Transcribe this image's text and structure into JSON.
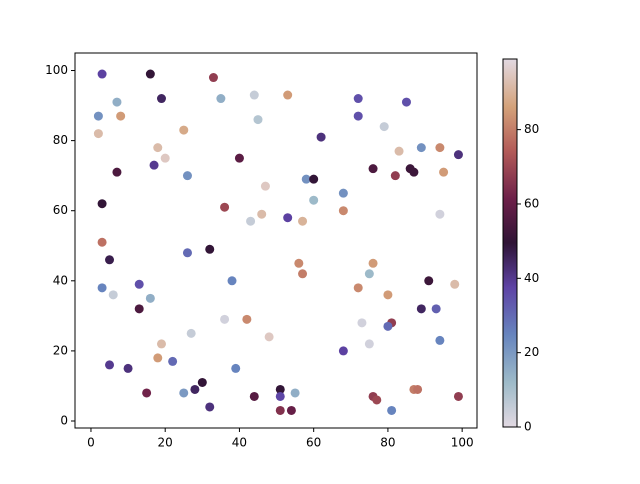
{
  "chart_data": {
    "type": "scatter",
    "x": [
      3,
      16,
      33,
      2,
      7,
      8,
      19,
      35,
      44,
      53,
      2,
      25,
      45,
      18,
      20,
      17,
      26,
      7,
      40,
      62,
      72,
      72,
      85,
      79,
      83,
      89,
      94,
      99,
      76,
      82,
      86,
      87,
      95,
      58,
      60,
      68,
      60,
      68,
      3,
      36,
      47,
      46,
      43,
      53,
      57,
      94,
      3,
      26,
      32,
      5,
      56,
      57,
      76,
      75,
      3,
      6,
      13,
      13,
      16,
      38,
      42,
      36,
      27,
      48,
      72,
      80,
      91,
      89,
      93,
      98,
      73,
      81,
      80,
      75,
      94,
      68,
      19,
      18,
      22,
      5,
      10,
      39,
      30,
      28,
      25,
      15,
      51,
      55,
      44,
      51,
      32,
      51,
      54,
      76,
      77,
      87,
      88,
      81,
      99
    ],
    "values": [
      99,
      99,
      98,
      87,
      91,
      87,
      92,
      92,
      93,
      93,
      82,
      83,
      86,
      78,
      75,
      73,
      70,
      71,
      75,
      81,
      92,
      87,
      91,
      84,
      77,
      78,
      78,
      76,
      72,
      70,
      72,
      71,
      71,
      69,
      69,
      65,
      63,
      60,
      62,
      61,
      67,
      59,
      57,
      58,
      57,
      59,
      51,
      48,
      49,
      46,
      45,
      42,
      45,
      42,
      38,
      36,
      39,
      32,
      35,
      40,
      29,
      29,
      25,
      24,
      38,
      36,
      40,
      32,
      32,
      39,
      28,
      28,
      27,
      22,
      23,
      20,
      22,
      18,
      17,
      16,
      15,
      15,
      11,
      9,
      8,
      8,
      9,
      8,
      7,
      7,
      4,
      3,
      3,
      7,
      6,
      9,
      9,
      3,
      7
    ],
    "c": [
      38,
      50,
      68,
      22,
      15,
      85,
      45,
      15,
      5,
      85,
      92,
      88,
      8,
      92,
      95,
      40,
      22,
      55,
      58,
      42,
      35,
      35,
      35,
      5,
      92,
      22,
      82,
      42,
      55,
      68,
      52,
      52,
      85,
      22,
      50,
      22,
      12,
      82,
      50,
      70,
      95,
      92,
      5,
      38,
      90,
      3,
      78,
      30,
      50,
      47,
      82,
      80,
      85,
      12,
      25,
      5,
      35,
      55,
      15,
      25,
      82,
      3,
      5,
      95,
      82,
      85,
      52,
      45,
      32,
      92,
      3,
      68,
      30,
      3,
      25,
      38,
      92,
      85,
      30,
      40,
      42,
      25,
      50,
      45,
      20,
      62,
      50,
      15,
      57,
      37,
      42,
      65,
      60,
      68,
      70,
      80,
      78,
      25,
      68
    ],
    "xlim": [
      -4.3,
      104
    ],
    "ylim": [
      -2,
      105
    ],
    "xticks": [
      0,
      20,
      40,
      60,
      80,
      100
    ],
    "yticks": [
      0,
      20,
      40,
      60,
      80,
      100
    ],
    "colorbar": {
      "clim": [
        0,
        99
      ],
      "ticks": [
        0,
        20,
        40,
        60,
        80
      ]
    },
    "colormap": [
      [
        0,
        "#e2d9e2"
      ],
      [
        0.12,
        "#9ebbc9"
      ],
      [
        0.25,
        "#6785be"
      ],
      [
        0.38,
        "#5e43a5"
      ],
      [
        0.5,
        "#2f1436"
      ],
      [
        0.62,
        "#6d2049"
      ],
      [
        0.75,
        "#b35b58"
      ],
      [
        0.87,
        "#d4a27a"
      ],
      [
        1,
        "#e2d9e2"
      ]
    ]
  }
}
